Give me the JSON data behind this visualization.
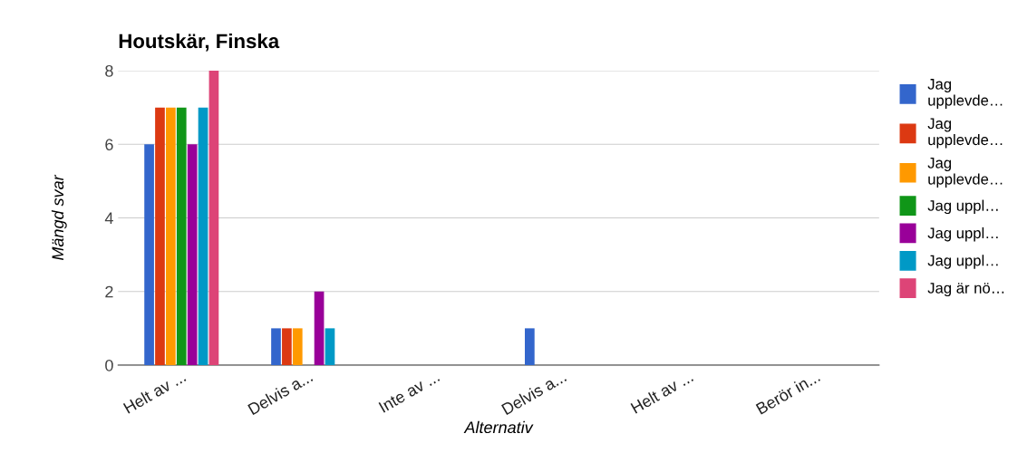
{
  "chart_data": {
    "type": "bar",
    "title": "Houtskär, Finska",
    "xlabel": "Alternativ",
    "ylabel": "Mängd svar",
    "categories": [
      "Helt av ...",
      "Delvis a...",
      "Inte av ...",
      "Delvis a...",
      "Helt av ...",
      "Berör in..."
    ],
    "series": [
      {
        "name": "Jag\nupplevde…",
        "color": "#3366cc",
        "values": [
          6,
          1,
          0,
          1,
          0,
          0
        ]
      },
      {
        "name": "Jag\nupplevde…",
        "color": "#dc3912",
        "values": [
          7,
          1,
          0,
          0,
          0,
          0
        ]
      },
      {
        "name": "Jag\nupplevde…",
        "color": "#ff9900",
        "values": [
          7,
          1,
          0,
          0,
          0,
          0
        ]
      },
      {
        "name": "Jag uppl…",
        "color": "#109618",
        "values": [
          7,
          0,
          0,
          0,
          0,
          0
        ]
      },
      {
        "name": "Jag uppl…",
        "color": "#990099",
        "values": [
          6,
          2,
          0,
          0,
          0,
          0
        ]
      },
      {
        "name": "Jag uppl…",
        "color": "#0099c6",
        "values": [
          7,
          1,
          0,
          0,
          0,
          0
        ]
      },
      {
        "name": "Jag är nö…",
        "color": "#dd4477",
        "values": [
          8,
          0,
          0,
          0,
          0,
          0
        ]
      }
    ],
    "ylim": [
      0,
      8
    ],
    "yticks": [
      0,
      2,
      4,
      6,
      8
    ],
    "grid": "y",
    "legend": "top right"
  }
}
